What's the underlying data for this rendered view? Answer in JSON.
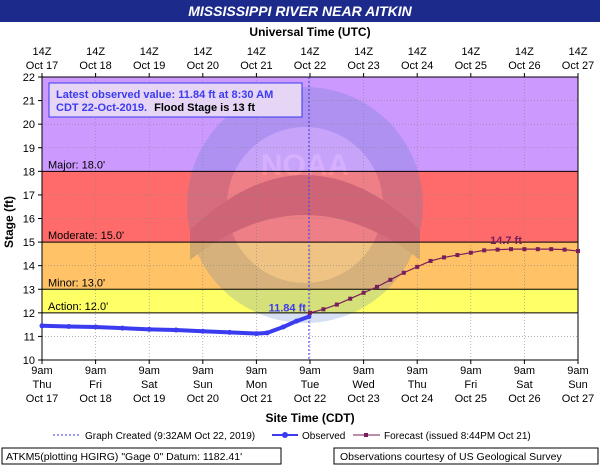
{
  "title": "MISSISSIPPI RIVER NEAR AITKIN",
  "top_axis_title": "Universal Time (UTC)",
  "bottom_axis_title": "Site Time (CDT)",
  "y_axis_title": "Stage (ft)",
  "info_box": {
    "line1": "Latest observed value: 11.84 ft at 8:30 AM",
    "line2a": "CDT 22-Oct-2019.",
    "line2b": "Flood Stage is 13 ft"
  },
  "legend": {
    "graph_created": "Graph Created (9:32AM Oct 22, 2019)",
    "observed": "Observed",
    "forecast": "Forecast (issued 8:44PM Oct 21)"
  },
  "footer": {
    "left": "ATKM5(plotting HGIRG) \"Gage 0\" Datum: 1182.41'",
    "right": "Observations courtesy of US Geological Survey"
  },
  "watermark": "NOAA",
  "colors": {
    "title_bg": "#1c2a8c",
    "major": "#cc99ff",
    "moderate": "#ff6b6b",
    "minor": "#ffc266",
    "action": "#ffff66",
    "observed": "#3b3bf0",
    "forecast": "#7a1e5a"
  },
  "chart_data": {
    "type": "line",
    "title": "MISSISSIPPI RIVER NEAR AITKIN",
    "xlabel": "Site Time (CDT)",
    "ylabel": "Stage (ft)",
    "ylim": [
      10,
      22
    ],
    "yticks": [
      10,
      11,
      12,
      13,
      14,
      15,
      16,
      17,
      18,
      19,
      20,
      21,
      22
    ],
    "x_unit": "days from 9am Oct 17 (CDT)",
    "xlim": [
      0,
      10
    ],
    "bottom_ticks": [
      {
        "line1": "9am",
        "line2": "Thu",
        "line3": "Oct 17"
      },
      {
        "line1": "9am",
        "line2": "Fri",
        "line3": "Oct 18"
      },
      {
        "line1": "9am",
        "line2": "Sat",
        "line3": "Oct 19"
      },
      {
        "line1": "9am",
        "line2": "Sun",
        "line3": "Oct 20"
      },
      {
        "line1": "9am",
        "line2": "Mon",
        "line3": "Oct 21"
      },
      {
        "line1": "9am",
        "line2": "Tue",
        "line3": "Oct 22"
      },
      {
        "line1": "9am",
        "line2": "Wed",
        "line3": "Oct 23"
      },
      {
        "line1": "9am",
        "line2": "Thu",
        "line3": "Oct 24"
      },
      {
        "line1": "9am",
        "line2": "Fri",
        "line3": "Oct 25"
      },
      {
        "line1": "9am",
        "line2": "Sat",
        "line3": "Oct 26"
      },
      {
        "line1": "9am",
        "line2": "Sun",
        "line3": "Oct 27"
      }
    ],
    "top_ticks": [
      {
        "line1": "14Z",
        "line2": "Oct 17"
      },
      {
        "line1": "14Z",
        "line2": "Oct 18"
      },
      {
        "line1": "14Z",
        "line2": "Oct 19"
      },
      {
        "line1": "14Z",
        "line2": "Oct 20"
      },
      {
        "line1": "14Z",
        "line2": "Oct 21"
      },
      {
        "line1": "14Z",
        "line2": "Oct 22"
      },
      {
        "line1": "14Z",
        "line2": "Oct 23"
      },
      {
        "line1": "14Z",
        "line2": "Oct 24"
      },
      {
        "line1": "14Z",
        "line2": "Oct 25"
      },
      {
        "line1": "14Z",
        "line2": "Oct 26"
      },
      {
        "line1": "14Z",
        "line2": "Oct 27"
      }
    ],
    "bands": [
      {
        "name": "Major",
        "label": "Major: 18.0'",
        "from": 18,
        "to": 22
      },
      {
        "name": "Moderate",
        "label": "Moderate: 15.0'",
        "from": 15,
        "to": 18
      },
      {
        "name": "Minor",
        "label": "Minor: 13.0'",
        "from": 13,
        "to": 15
      },
      {
        "name": "Action",
        "label": "Action: 12.0'",
        "from": 12,
        "to": 13
      }
    ],
    "observed": {
      "x": [
        0,
        0.5,
        1,
        1.5,
        2,
        2.5,
        3,
        3.5,
        4,
        4.2,
        4.5,
        4.75,
        4.98
      ],
      "y": [
        11.45,
        11.42,
        11.4,
        11.35,
        11.3,
        11.27,
        11.22,
        11.17,
        11.12,
        11.15,
        11.4,
        11.65,
        11.84
      ],
      "annotation": "11.84 ft"
    },
    "forecast": {
      "x": [
        5,
        5.25,
        5.5,
        5.75,
        6,
        6.25,
        6.5,
        6.75,
        7,
        7.25,
        7.5,
        7.75,
        8,
        8.25,
        8.5,
        8.75,
        9,
        9.25,
        9.5,
        9.75,
        10
      ],
      "y": [
        12.0,
        12.15,
        12.35,
        12.6,
        12.85,
        13.1,
        13.4,
        13.7,
        13.95,
        14.2,
        14.35,
        14.45,
        14.55,
        14.65,
        14.68,
        14.7,
        14.7,
        14.7,
        14.7,
        14.68,
        14.62
      ],
      "annotation": "14.7 ft"
    },
    "created_marker_x": 4.98
  }
}
